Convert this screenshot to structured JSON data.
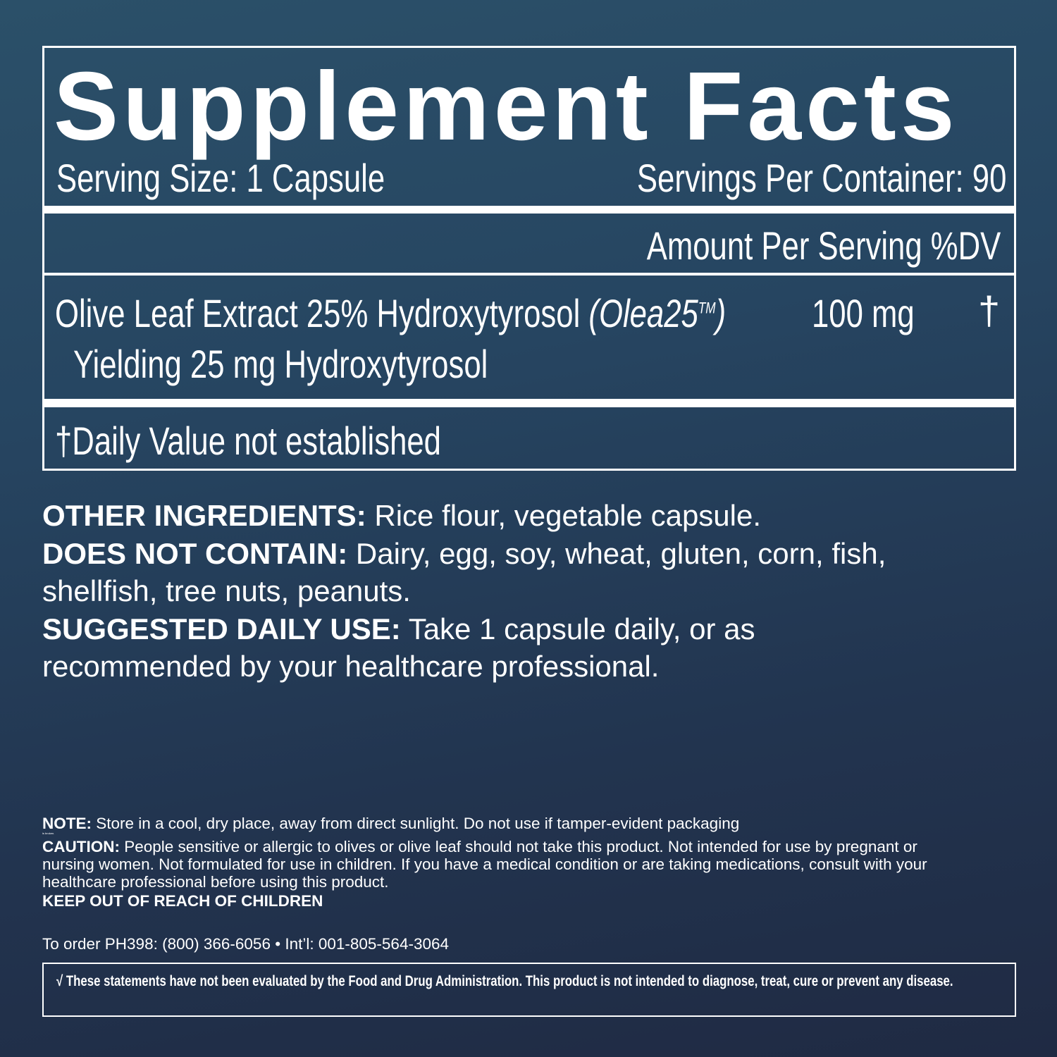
{
  "panel": {
    "title": "Supplement Facts",
    "serving_size": "Serving Size: 1 Capsule",
    "servings_per_container": "Servings Per Container: 90",
    "header_amount": "Amount Per Serving",
    "header_dv": "%DV",
    "ingredient": {
      "name": "Olive Leaf Extract 25% Hydroxytyrosol",
      "brand": "(Olea25",
      "tm": "TM",
      "brand_close": ")",
      "amount": "100 mg",
      "dv": "†",
      "sub": "Yielding 25 mg Hydroxytyrosol"
    },
    "footnote": "†Daily Value not established"
  },
  "info": {
    "other_label": "OTHER INGREDIENTS:",
    "other_text": " Rice flour, vegetable capsule.",
    "dnc_label": "DOES NOT CONTAIN:",
    "dnc_text": " Dairy, egg, soy, wheat, gluten, corn, fish,",
    "dnc_text2": "shellfish, tree nuts, peanuts.",
    "use_label": "SUGGESTED DAILY USE:",
    "use_text": " Take 1 capsule daily, or as",
    "use_text2": "recommended by your healthcare professional."
  },
  "warnings": {
    "note_label": "NOTE:",
    "note_text": " Store in a cool, dry place, away from direct sunlight. Do not use if tamper-evident packaging",
    "note_tiny": "is broken.",
    "caution_label": "CAUTION:",
    "caution_text": " People sensitive or allergic to olives or olive leaf should not take this product. Not intended for use by pregnant or nursing women. Not formulated for use in children. If you have a medical condition or are taking medications, consult with your healthcare professional before using this product.",
    "keep_out": "KEEP OUT OF REACH OF CHILDREN"
  },
  "order": "To order PH398: (800) 366-6056 • Int’l: 001-805-564-3064",
  "fda": "√ These statements have not been evaluated by the Food and Drug Administration. This product is not intended to diagnose, treat, cure or prevent any disease.",
  "colors": {
    "background_top": "#2b5069",
    "background_bottom": "#1f2a43",
    "text": "#ffffff"
  }
}
